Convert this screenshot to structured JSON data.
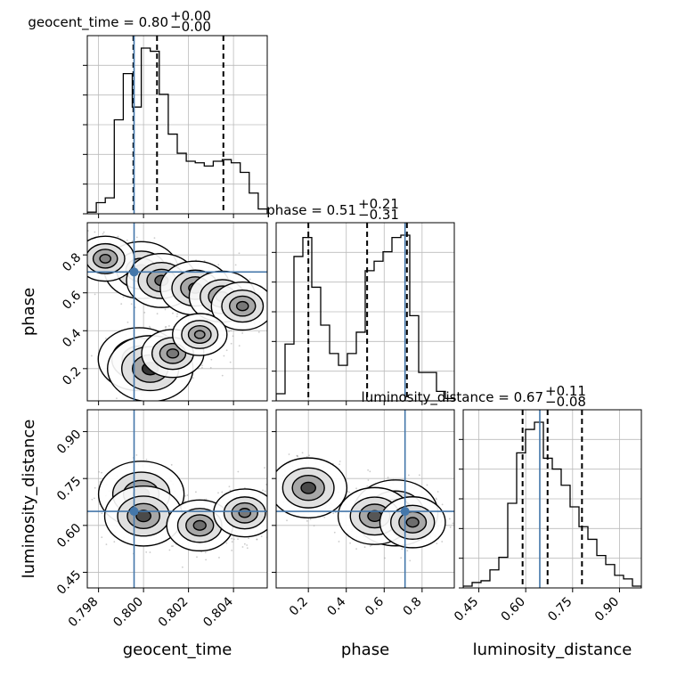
{
  "colors": {
    "truth": "#4477aa",
    "lines": "#000000",
    "grid": "#bbbbbb",
    "scatter": "#a0a0a0"
  },
  "titles": [
    {
      "param": "geocent_time",
      "text": "geocent_time = 0.80",
      "sup": "+0.00",
      "sub": "−0.00"
    },
    {
      "param": "phase",
      "text": "phase = 0.51",
      "sup": "+0.21",
      "sub": "−0.31"
    },
    {
      "param": "luminosity_distance",
      "text": "luminosity_distance = 0.67",
      "sup": "+0.11",
      "sub": "−0.08"
    }
  ],
  "axis_labels": {
    "geocent_time": "geocent_time",
    "phase": "phase",
    "luminosity_distance": "luminosity_distance"
  },
  "chart_data": {
    "type": "corner",
    "parameters": [
      "geocent_time",
      "phase",
      "luminosity_distance"
    ],
    "ranges": {
      "geocent_time": [
        0.7975,
        0.8055
      ],
      "phase": [
        0.03,
        0.97
      ],
      "luminosity_distance": [
        0.4,
        0.97
      ]
    },
    "ticks": {
      "geocent_time": {
        "values": [
          0.798,
          0.8,
          0.802,
          0.804
        ],
        "labels": [
          "0.798",
          "0.800",
          "0.802",
          "0.804"
        ]
      },
      "phase": {
        "values": [
          0.2,
          0.4,
          0.6,
          0.8
        ],
        "labels": [
          "0.2",
          "0.4",
          "0.6",
          "0.8"
        ]
      },
      "luminosity_distance": {
        "values": [
          0.45,
          0.6,
          0.75,
          0.9
        ],
        "labels": [
          "0.45",
          "0.60",
          "0.75",
          "0.90"
        ]
      }
    },
    "truths": {
      "geocent_time": 0.79958,
      "phase": 0.71,
      "luminosity_distance": 0.645
    },
    "quantiles": {
      "geocent_time": [
        0.79955,
        0.8006,
        0.80355
      ],
      "phase": [
        0.2,
        0.51,
        0.72
      ],
      "luminosity_distance": [
        0.59,
        0.67,
        0.78
      ]
    },
    "histograms": {
      "geocent_time": {
        "edges": [
          0.7975,
          0.7979,
          0.7983,
          0.7987,
          0.7991,
          0.7995,
          0.7999,
          0.8003,
          0.8007,
          0.8011,
          0.8015,
          0.8019,
          0.8023,
          0.8027,
          0.8031,
          0.8035,
          0.8039,
          0.8043,
          0.8047,
          0.8051,
          0.8055
        ],
        "counts": [
          1,
          7,
          10,
          59,
          88,
          67,
          104,
          102,
          75,
          50,
          38,
          33,
          32,
          30,
          33,
          34,
          32,
          26,
          13,
          3
        ]
      },
      "phase": {
        "edges": [
          0.03,
          0.077,
          0.124,
          0.171,
          0.218,
          0.265,
          0.312,
          0.359,
          0.406,
          0.453,
          0.5,
          0.547,
          0.594,
          0.641,
          0.688,
          0.735,
          0.782,
          0.829,
          0.876,
          0.923,
          0.97
        ],
        "counts": [
          3,
          24,
          61,
          69,
          48,
          32,
          20,
          15,
          20,
          29,
          55,
          59,
          63,
          69,
          70,
          36,
          12,
          12,
          4,
          1
        ]
      },
      "luminosity_distance": {
        "edges": [
          0.4,
          0.4285,
          0.457,
          0.4855,
          0.514,
          0.5425,
          0.571,
          0.5995,
          0.628,
          0.6565,
          0.685,
          0.7135,
          0.742,
          0.7705,
          0.799,
          0.8275,
          0.856,
          0.8845,
          0.913,
          0.9415,
          0.97
        ],
        "counts": [
          1,
          3,
          4,
          10,
          17,
          47,
          75,
          88,
          92,
          72,
          66,
          57,
          45,
          34,
          27,
          18,
          13,
          7,
          5,
          1
        ]
      }
    },
    "density_modes": {
      "phase_vs_geocent_time": [
        {
          "x": 0.7999,
          "y": 0.72,
          "w": 0.7
        },
        {
          "x": 0.8008,
          "y": 0.665,
          "w": 0.6
        },
        {
          "x": 0.8023,
          "y": 0.625,
          "w": 0.6
        },
        {
          "x": 0.8035,
          "y": 0.58,
          "w": 0.5
        },
        {
          "x": 0.8044,
          "y": 0.53,
          "w": 0.4
        },
        {
          "x": 0.7983,
          "y": 0.78,
          "w": 0.3
        },
        {
          "x": 0.7998,
          "y": 0.25,
          "w": 0.9
        },
        {
          "x": 0.8003,
          "y": 0.2,
          "w": 1.0
        },
        {
          "x": 0.8013,
          "y": 0.28,
          "w": 0.4
        },
        {
          "x": 0.8025,
          "y": 0.38,
          "w": 0.2
        }
      ],
      "luminosity_distance_vs_geocent_time": [
        {
          "x": 0.7999,
          "y": 0.7,
          "w": 1.0
        },
        {
          "x": 0.8,
          "y": 0.63,
          "w": 0.8
        },
        {
          "x": 0.8025,
          "y": 0.6,
          "w": 0.5
        },
        {
          "x": 0.8045,
          "y": 0.64,
          "w": 0.4
        }
      ],
      "luminosity_distance_vs_phase": [
        {
          "x": 0.2,
          "y": 0.72,
          "w": 0.8
        },
        {
          "x": 0.66,
          "y": 0.64,
          "w": 1.0
        },
        {
          "x": 0.55,
          "y": 0.63,
          "w": 0.7
        },
        {
          "x": 0.75,
          "y": 0.61,
          "w": 0.5
        }
      ]
    }
  }
}
